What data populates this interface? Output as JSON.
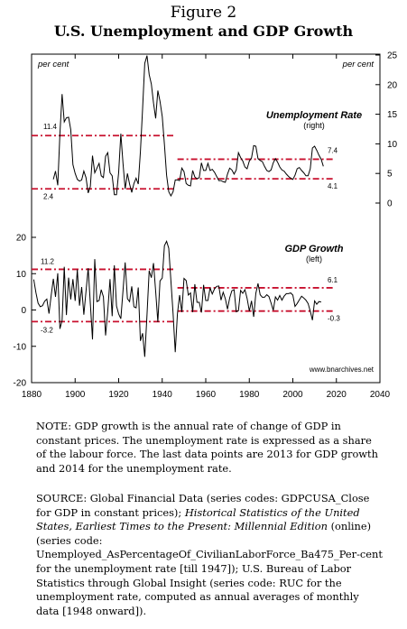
{
  "figure": {
    "label": "Figure 2",
    "title": "U.S. Unemployment and GDP Growth"
  },
  "chart_data": {
    "type": "line",
    "x_axis": {
      "range": [
        1880,
        2040
      ],
      "ticks": [
        1880,
        1900,
        1920,
        1940,
        1960,
        1980,
        2000,
        2020,
        2040
      ]
    },
    "left_axis_label": "per cent",
    "right_axis_label": "per cent",
    "watermark": "www.bnarchives.net",
    "unemployment": {
      "title": "Unemployment Rate",
      "subtitle": "(right)",
      "axis": "right",
      "ticks": [
        0,
        5,
        10,
        15,
        20,
        25
      ],
      "range": [
        0,
        25
      ],
      "x": [
        1890,
        1891,
        1892,
        1893,
        1894,
        1895,
        1896,
        1897,
        1898,
        1899,
        1900,
        1901,
        1902,
        1903,
        1904,
        1905,
        1906,
        1907,
        1908,
        1909,
        1910,
        1911,
        1912,
        1913,
        1914,
        1915,
        1916,
        1917,
        1918,
        1919,
        1920,
        1921,
        1922,
        1923,
        1924,
        1925,
        1926,
        1927,
        1928,
        1929,
        1930,
        1931,
        1932,
        1933,
        1934,
        1935,
        1936,
        1937,
        1938,
        1939,
        1940,
        1941,
        1942,
        1943,
        1944,
        1945,
        1946,
        1947,
        1948,
        1949,
        1950,
        1951,
        1952,
        1953,
        1954,
        1955,
        1956,
        1957,
        1958,
        1959,
        1960,
        1961,
        1962,
        1963,
        1964,
        1965,
        1966,
        1967,
        1968,
        1969,
        1970,
        1971,
        1972,
        1973,
        1974,
        1975,
        1976,
        1977,
        1978,
        1979,
        1980,
        1981,
        1982,
        1983,
        1984,
        1985,
        1986,
        1987,
        1988,
        1989,
        1990,
        1991,
        1992,
        1993,
        1994,
        1995,
        1996,
        1997,
        1998,
        1999,
        2000,
        2001,
        2002,
        2003,
        2004,
        2005,
        2006,
        2007,
        2008,
        2009,
        2010,
        2011,
        2012,
        2013,
        2014
      ],
      "values": [
        4.0,
        5.4,
        3.0,
        11.7,
        18.4,
        13.7,
        14.4,
        14.5,
        12.4,
        6.5,
        5.0,
        4.0,
        3.7,
        3.9,
        5.4,
        4.3,
        1.7,
        2.8,
        8.0,
        5.1,
        5.9,
        6.7,
        4.6,
        4.3,
        7.9,
        8.5,
        5.1,
        4.6,
        1.4,
        1.4,
        5.2,
        11.7,
        6.7,
        2.4,
        5.0,
        3.2,
        1.8,
        3.3,
        4.2,
        3.2,
        8.7,
        15.9,
        23.6,
        24.9,
        21.7,
        20.1,
        16.9,
        14.3,
        19.0,
        17.2,
        14.6,
        9.9,
        4.7,
        1.9,
        1.2,
        1.9,
        3.9,
        3.9,
        3.8,
        5.9,
        5.3,
        3.3,
        3.0,
        2.9,
        5.5,
        4.4,
        4.1,
        4.3,
        6.8,
        5.5,
        5.5,
        6.7,
        5.5,
        5.7,
        5.2,
        4.5,
        3.8,
        3.8,
        3.6,
        3.5,
        4.9,
        5.9,
        5.6,
        4.9,
        5.6,
        8.5,
        7.7,
        7.1,
        6.1,
        5.8,
        7.1,
        7.6,
        9.7,
        9.6,
        7.5,
        7.2,
        7.0,
        6.2,
        5.5,
        5.3,
        5.6,
        6.8,
        7.5,
        6.9,
        6.1,
        5.6,
        5.4,
        4.9,
        4.5,
        4.2,
        4.0,
        4.7,
        5.8,
        6.0,
        5.5,
        5.1,
        4.6,
        4.6,
        5.8,
        9.3,
        9.6,
        8.9,
        8.1,
        7.4,
        6.2
      ],
      "reference_lines": [
        {
          "label": "11.4",
          "value": 11.4,
          "from": 1880,
          "to": 1946
        },
        {
          "label": "2.4",
          "value": 2.4,
          "from": 1880,
          "to": 1946
        },
        {
          "label": "7.4",
          "value": 7.4,
          "from": 1947,
          "to": 2019
        },
        {
          "label": "4.1",
          "value": 4.1,
          "from": 1947,
          "to": 2019
        }
      ]
    },
    "gdp_growth": {
      "title": "GDP Growth",
      "subtitle": "(left)",
      "axis": "left",
      "ticks": [
        -20,
        -10,
        0,
        10,
        20
      ],
      "range": [
        -20,
        20
      ],
      "x": [
        1881,
        1882,
        1883,
        1884,
        1885,
        1886,
        1887,
        1888,
        1889,
        1890,
        1891,
        1892,
        1893,
        1894,
        1895,
        1896,
        1897,
        1898,
        1899,
        1900,
        1901,
        1902,
        1903,
        1904,
        1905,
        1906,
        1907,
        1908,
        1909,
        1910,
        1911,
        1912,
        1913,
        1914,
        1915,
        1916,
        1917,
        1918,
        1919,
        1920,
        1921,
        1922,
        1923,
        1924,
        1925,
        1926,
        1927,
        1928,
        1929,
        1930,
        1931,
        1932,
        1933,
        1934,
        1935,
        1936,
        1937,
        1938,
        1939,
        1940,
        1941,
        1942,
        1943,
        1944,
        1945,
        1946,
        1947,
        1948,
        1949,
        1950,
        1951,
        1952,
        1953,
        1954,
        1955,
        1956,
        1957,
        1958,
        1959,
        1960,
        1961,
        1962,
        1963,
        1964,
        1965,
        1966,
        1967,
        1968,
        1969,
        1970,
        1971,
        1972,
        1973,
        1974,
        1975,
        1976,
        1977,
        1978,
        1979,
        1980,
        1981,
        1982,
        1983,
        1984,
        1985,
        1986,
        1987,
        1988,
        1989,
        1990,
        1991,
        1992,
        1993,
        1994,
        1995,
        1996,
        1997,
        1998,
        1999,
        2000,
        2001,
        2002,
        2003,
        2004,
        2005,
        2006,
        2007,
        2008,
        2009,
        2010,
        2011,
        2012,
        2013
      ],
      "values": [
        8.4,
        4.8,
        1.9,
        0.9,
        1.2,
        2.4,
        3.0,
        -1.0,
        4.0,
        8.6,
        3.6,
        10.1,
        -5.2,
        -2.9,
        11.9,
        -1.4,
        8.9,
        2.9,
        8.5,
        2.5,
        11.1,
        1.2,
        6.3,
        -1.3,
        5.1,
        11.5,
        1.8,
        -8.1,
        14.0,
        2.3,
        2.6,
        5.6,
        3.6,
        -7.0,
        -0.3,
        8.5,
        -1.7,
        12.3,
        1.1,
        -1.1,
        -2.4,
        5.3,
        13.1,
        3.1,
        2.3,
        6.5,
        0.9,
        0.6,
        6.2,
        -8.5,
        -6.4,
        -12.9,
        -1.3,
        10.8,
        8.9,
        12.9,
        5.1,
        -3.3,
        8.0,
        8.8,
        17.7,
        18.9,
        17.0,
        8.0,
        -1.0,
        -11.6,
        -1.1,
        4.1,
        -0.6,
        8.7,
        8.1,
        4.1,
        4.7,
        -0.6,
        7.1,
        2.1,
        2.1,
        -0.7,
        6.9,
        2.6,
        2.6,
        6.1,
        4.4,
        5.8,
        6.5,
        6.6,
        2.7,
        4.9,
        3.1,
        0.2,
        3.3,
        5.3,
        5.6,
        -0.5,
        -0.2,
        5.4,
        4.6,
        5.6,
        3.2,
        -0.3,
        2.5,
        -1.9,
        4.6,
        7.3,
        4.2,
        3.5,
        3.5,
        4.2,
        3.7,
        1.9,
        -0.1,
        3.6,
        2.7,
        4.0,
        2.7,
        3.8,
        4.5,
        4.5,
        4.7,
        4.1,
        1.0,
        1.8,
        2.8,
        3.8,
        3.3,
        2.7,
        1.8,
        -0.3,
        -2.8,
        2.5,
        1.6,
        2.3,
        2.2
      ],
      "reference_lines": [
        {
          "label": "11.2",
          "value": 11.2,
          "from": 1880,
          "to": 1946
        },
        {
          "label": "-3.2",
          "value": -3.2,
          "from": 1880,
          "to": 1946
        },
        {
          "label": "6.1",
          "value": 6.1,
          "from": 1947,
          "to": 2019
        },
        {
          "label": "-0.3",
          "value": -0.3,
          "from": 1947,
          "to": 2019
        }
      ]
    }
  },
  "notes": {
    "note": "NOTE: GDP growth is the annual rate of change of GDP in constant prices. The unemployment rate is expressed as a share of the labour force. The last data points are 2013 for GDP growth and 2014 for the unemployment rate.",
    "source_a": "SOURCE: Global Financial Data (series codes: GDPCUSA_Close for GDP in constant prices); ",
    "source_italic": "Historical Statistics of the United States, Earliest Times to the Present: Millennial Edition",
    "source_b": " (online) (series code: Unemployed_AsPercentageOf_CivilianLaborForce_Ba475_Per-cent for the unemployment rate [till 1947]); U.S. Bureau of Labor Statistics through Global Insight (series code: RUC for the unemployment rate, computed as annual averages of monthly data [1948 onward])."
  }
}
